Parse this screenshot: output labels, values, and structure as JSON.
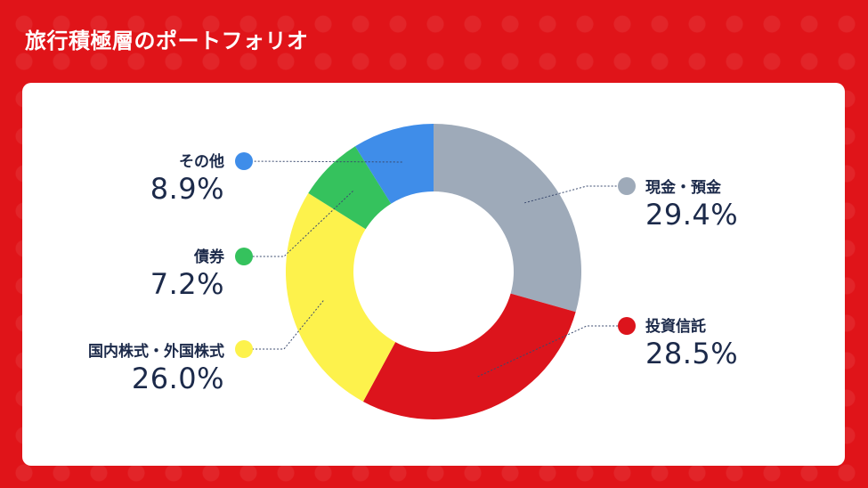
{
  "title": "旅行積極層のポートフォリオ",
  "chart_data": {
    "type": "pie",
    "donut": true,
    "slices": [
      {
        "label": "現金・預金",
        "value": 29.4,
        "value_label": "29.4%",
        "color": "#9eaab9"
      },
      {
        "label": "投資信託",
        "value": 28.5,
        "value_label": "28.5%",
        "color": "#dc141c"
      },
      {
        "label": "国内株式・外国株式",
        "value": 26.0,
        "value_label": "26.0%",
        "color": "#fdf24c"
      },
      {
        "label": "債券",
        "value": 7.2,
        "value_label": "7.2%",
        "color": "#35c25d"
      },
      {
        "label": "その他",
        "value": 8.9,
        "value_label": "8.9%",
        "color": "#3f8de9"
      }
    ]
  }
}
